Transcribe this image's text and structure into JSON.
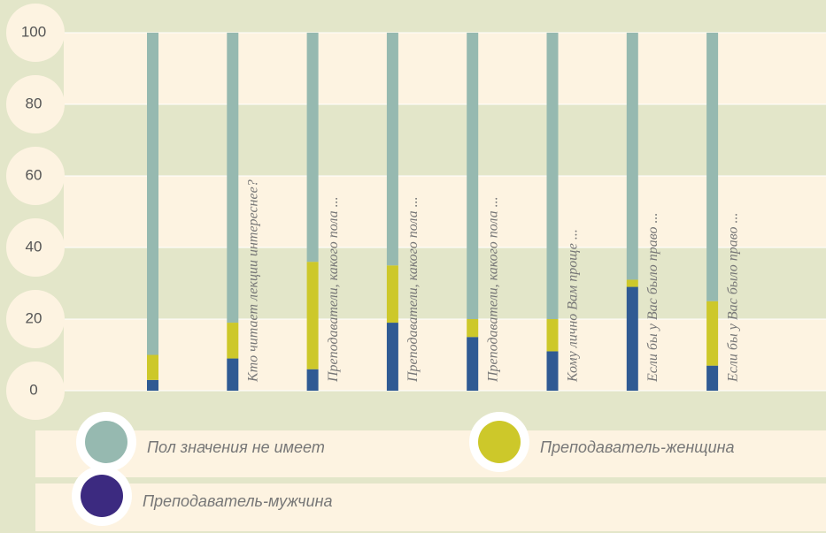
{
  "chart_data": {
    "type": "stacked_bar",
    "categories": [
      null,
      "Кто читает лекции интереснее?",
      "Преподаватели, какого пола ...",
      "Преподаватели, какого пола ...",
      "Преподаватели, какого пола ...",
      "Кому лично Вам проще ...",
      "Если бы у Вас было право ...",
      "Если бы у Вас было право ..."
    ],
    "series": [
      {
        "name": "Преподаватель-мужчина",
        "color": "#2f5a93",
        "marker_color": "#3c2a80",
        "values": [
          3,
          9,
          6,
          19,
          15,
          11,
          29,
          7
        ]
      },
      {
        "name": "Преподаватель-женщина",
        "color": "#cdc82a",
        "marker_color": "#cdc82a",
        "values": [
          7,
          10,
          30,
          16,
          5,
          9,
          2,
          18
        ]
      },
      {
        "name": "Пол значения не имеет",
        "color": "#96b9b0",
        "marker_color": "#96b9b0",
        "values": [
          90,
          81,
          64,
          65,
          80,
          80,
          69,
          75
        ]
      }
    ],
    "ylim": [
      0,
      100
    ],
    "yticks": [
      0,
      20,
      40,
      60,
      80,
      100
    ],
    "grid": true
  }
}
